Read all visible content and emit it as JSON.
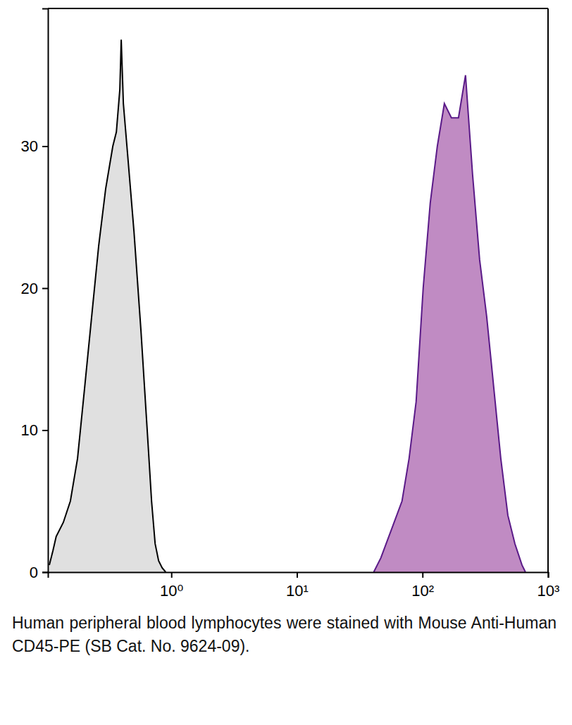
{
  "chart_data": {
    "type": "area",
    "log": "x",
    "caption": "Human peripheral blood lymphocytes were stained with Mouse Anti-Human CD45-PE (SB Cat. No. 9624-09).",
    "xlim": [
      0.104,
      1000
    ],
    "xticks": [
      {
        "value": 1,
        "label": "10⁰"
      },
      {
        "value": 10,
        "label": "10¹"
      },
      {
        "value": 100,
        "label": "10²"
      },
      {
        "value": 1000,
        "label": "10³"
      }
    ],
    "ylim": [
      0,
      39.7
    ],
    "yticks": [
      0,
      10,
      20,
      30
    ],
    "series": [
      {
        "color": "#e0e0e0",
        "x": [
          0.1067,
          0.114,
          0.121,
          0.138,
          0.157,
          0.179,
          0.204,
          0.232,
          0.264,
          0.3,
          0.342,
          0.365,
          0.389,
          0.399,
          0.415,
          0.443,
          0.504,
          0.573,
          0.653,
          0.696,
          0.743,
          0.792,
          0.845,
          0.902
        ],
        "values": [
          0.5,
          1.5,
          2.5,
          3.5,
          5,
          8,
          13,
          18,
          23,
          27,
          30,
          31,
          34,
          37.5,
          33,
          30,
          24,
          17,
          9,
          5,
          2,
          0.8,
          0.3,
          0
        ]
      },
      {
        "color": "#c08bc3",
        "x": [
          40.9,
          46.6,
          56.6,
          68.7,
          78.2,
          89.0,
          101.3,
          115.3,
          131.3,
          149.4,
          170.0,
          193.5,
          220.2,
          250.6,
          285.2,
          324.6,
          369.5,
          420.5,
          478.6,
          544.6,
          619.8,
          661
        ],
        "values": [
          0,
          1,
          3,
          5,
          8,
          12,
          20,
          26,
          30,
          33,
          32,
          32,
          35,
          28,
          22,
          18,
          13,
          8,
          4,
          2,
          0.5,
          0
        ]
      }
    ]
  }
}
